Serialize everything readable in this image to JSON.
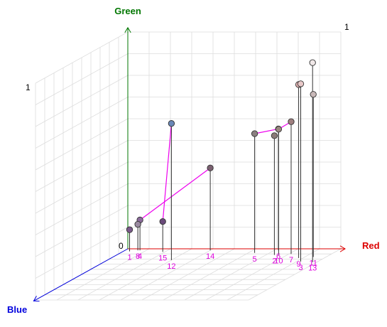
{
  "chart_data": {
    "type": "scatter",
    "projection": "3d",
    "title": "",
    "axes": {
      "x": {
        "label": "Red",
        "color": "#dd0000",
        "range": [
          0,
          1
        ]
      },
      "y": {
        "label": "Green",
        "color": "#007700",
        "range": [
          0,
          1
        ]
      },
      "z": {
        "label": "Blue",
        "color": "#0000dd",
        "range": [
          0,
          1
        ]
      }
    },
    "tick_labels": {
      "origin": "0",
      "green_max": "1",
      "far_corner_max": "1"
    },
    "grid": true,
    "point_label_color": "#dd00dd",
    "connector_color": "#ee00ee",
    "points": [
      {
        "label": "1",
        "x": 0.03,
        "y": 0.1,
        "z": 0.05,
        "color": "#7a5a8a"
      },
      {
        "label": "2",
        "x": 0.74,
        "y": 0.55,
        "z": 0.12,
        "color": "#8a7a78"
      },
      {
        "label": "3",
        "x": 0.92,
        "y": 0.82,
        "z": 0.25,
        "color": "#e8c8c8"
      },
      {
        "label": "4",
        "x": 0.07,
        "y": 0.14,
        "z": 0.03,
        "color": "#8a6a9a"
      },
      {
        "label": "5",
        "x": 0.63,
        "y": 0.55,
        "z": 0.08,
        "color": "#8a8080"
      },
      {
        "label": "6",
        "x": 0.72,
        "y": 0.56,
        "z": 0.03,
        "color": "#8a7a70"
      },
      {
        "label": "7",
        "x": 0.81,
        "y": 0.61,
        "z": 0.1,
        "color": "#a08080"
      },
      {
        "label": "8",
        "x": 0.06,
        "y": 0.12,
        "z": 0.03,
        "color": "#9a8aa0"
      },
      {
        "label": "9",
        "x": 0.88,
        "y": 0.8,
        "z": 0.18,
        "color": "#e0b0b0"
      },
      {
        "label": "10",
        "x": 0.76,
        "y": 0.58,
        "z": 0.12,
        "color": "#9a8880"
      },
      {
        "label": "11",
        "x": 0.94,
        "y": 0.75,
        "z": 0.16,
        "color": "#c8b8b8"
      },
      {
        "label": "12",
        "x": 0.3,
        "y": 0.63,
        "z": 0.22,
        "color": "#6a88b8"
      },
      {
        "label": "13",
        "x": 0.98,
        "y": 0.92,
        "z": 0.26,
        "color": "#f0e8e8"
      },
      {
        "label": "14",
        "x": 0.4,
        "y": 0.38,
        "z": 0.03,
        "color": "#7a6070"
      },
      {
        "label": "15",
        "x": 0.19,
        "y": 0.14,
        "z": 0.06,
        "color": "#6a4a7a"
      }
    ]
  }
}
